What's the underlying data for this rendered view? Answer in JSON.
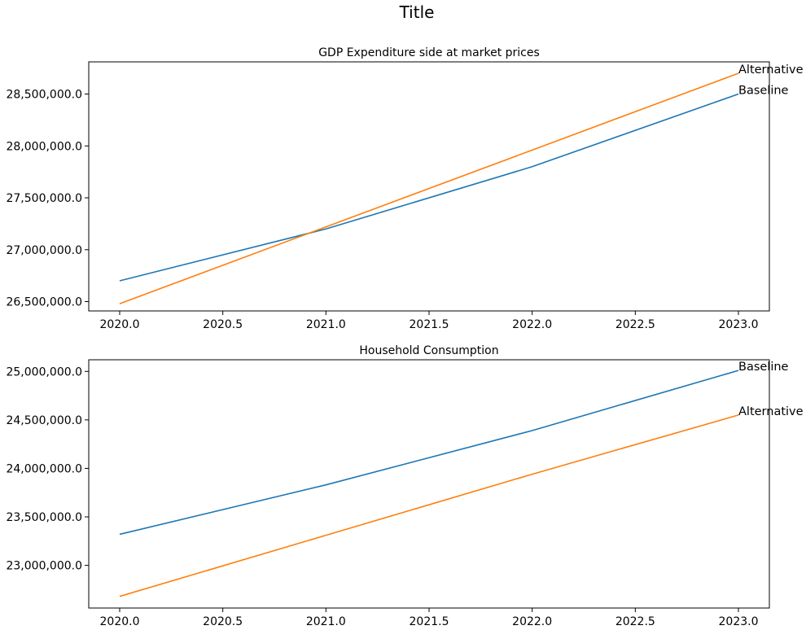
{
  "figure": {
    "title": "Title"
  },
  "chart_data": [
    {
      "type": "line",
      "title": "GDP Expenditure side at market prices",
      "xlabel": "",
      "ylabel": "",
      "xlim": [
        2019.85,
        2023.15
      ],
      "ylim": [
        26410000,
        28810000
      ],
      "xticks": [
        2020.0,
        2020.5,
        2021.0,
        2021.5,
        2022.0,
        2022.5,
        2023.0
      ],
      "yticks": [
        26500000,
        27000000,
        27500000,
        28000000,
        28500000
      ],
      "grid": false,
      "legend": "inline labels at line ends",
      "series": [
        {
          "name": "Baseline",
          "color": "#1f77b4",
          "x": [
            2020,
            2021,
            2022,
            2023
          ],
          "y": [
            26700000,
            27200000,
            27800000,
            28500000
          ]
        },
        {
          "name": "Alternative",
          "color": "#ff7f0e",
          "x": [
            2020,
            2021,
            2022,
            2023
          ],
          "y": [
            26480000,
            27220000,
            27960000,
            28700000
          ]
        }
      ]
    },
    {
      "type": "line",
      "title": "Household Consumption",
      "xlabel": "",
      "ylabel": "",
      "xlim": [
        2019.85,
        2023.15
      ],
      "ylim": [
        22560000,
        25120000
      ],
      "xticks": [
        2020.0,
        2020.5,
        2021.0,
        2021.5,
        2022.0,
        2022.5,
        2023.0
      ],
      "yticks": [
        23000000,
        23500000,
        24000000,
        24500000,
        25000000
      ],
      "grid": false,
      "legend": "inline labels at line ends",
      "series": [
        {
          "name": "Baseline",
          "color": "#1f77b4",
          "x": [
            2020,
            2021,
            2022,
            2023
          ],
          "y": [
            23320000,
            23830000,
            24390000,
            25010000
          ]
        },
        {
          "name": "Alternative",
          "color": "#ff7f0e",
          "x": [
            2020,
            2021,
            2022,
            2023
          ],
          "y": [
            22680000,
            23310000,
            23940000,
            24550000
          ]
        }
      ]
    }
  ]
}
